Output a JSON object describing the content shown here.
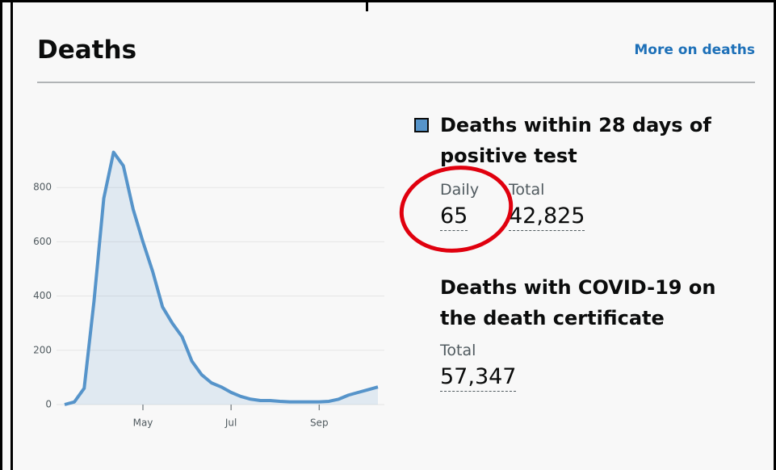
{
  "header": {
    "title": "Deaths",
    "link": "More on deaths"
  },
  "chart_data": {
    "type": "line",
    "categories": [
      null,
      null,
      null,
      null,
      null,
      null,
      null,
      null,
      "May",
      null,
      null,
      null,
      null,
      null,
      null,
      null,
      null,
      "Jul",
      null,
      null,
      null,
      null,
      null,
      null,
      null,
      null,
      "Sep",
      null,
      null,
      null,
      null,
      null,
      null
    ],
    "series": [
      {
        "name": "Deaths within 28 days of positive test",
        "color": "#5694ca",
        "values": [
          0,
          10,
          60,
          380,
          760,
          930,
          880,
          720,
          600,
          490,
          360,
          300,
          250,
          160,
          110,
          80,
          65,
          45,
          30,
          20,
          15,
          15,
          12,
          10,
          10,
          10,
          10,
          12,
          20,
          35,
          45,
          55,
          65
        ]
      }
    ],
    "ylim": [
      0,
      1000
    ],
    "yticks": [
      0,
      200,
      400,
      600,
      800
    ],
    "grid": true
  },
  "metrics": [
    {
      "heading": "Deaths within 28 days of positive test",
      "items": [
        {
          "label": "Daily",
          "value": "65"
        },
        {
          "label": "Total",
          "value": "42,825"
        }
      ]
    },
    {
      "heading": "Deaths with COVID-19 on the death certificate",
      "items": [
        {
          "label": "Total",
          "value": "57,347"
        }
      ]
    }
  ]
}
